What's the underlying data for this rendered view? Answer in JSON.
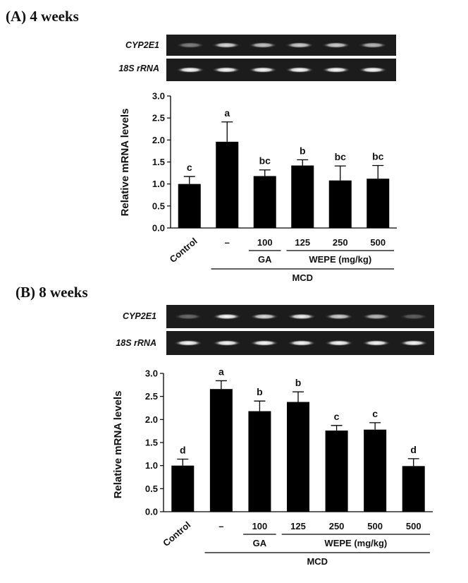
{
  "chart_data": [
    {
      "type": "bar",
      "panel_title": "(A) 4 weeks",
      "gel_labels": [
        "CYP2E1",
        "18S rRNA"
      ],
      "categories": [
        "Control",
        "–",
        "100",
        "125",
        "250",
        "500"
      ],
      "values": [
        1.0,
        1.96,
        1.18,
        1.42,
        1.08,
        1.12
      ],
      "errors": [
        0.17,
        0.45,
        0.14,
        0.13,
        0.33,
        0.3
      ],
      "significance": [
        "c",
        "a",
        "bc",
        "b",
        "bc",
        "bc"
      ],
      "ylabel": "Relative mRNA levels",
      "xlabel": "",
      "ylim": [
        0,
        3.0
      ],
      "yticks": [
        "0.0",
        "0.5",
        "1.0",
        "1.5",
        "2.0",
        "2.5",
        "3.0"
      ],
      "groups": [
        {
          "label": "GA",
          "from": 2,
          "to": 2
        },
        {
          "label": "WEPE (mg/kg)",
          "from": 3,
          "to": 5
        },
        {
          "label": "MCD",
          "from": 1,
          "to": 5
        }
      ],
      "bar_color": "#000000"
    },
    {
      "type": "bar",
      "panel_title": "(B) 8 weeks",
      "gel_labels": [
        "CYP2E1",
        "18S rRNA"
      ],
      "categories": [
        "Control",
        "–",
        "100",
        "125",
        "250",
        "500",
        "500"
      ],
      "values": [
        1.0,
        2.66,
        2.18,
        2.38,
        1.76,
        1.78,
        0.99
      ],
      "errors": [
        0.14,
        0.18,
        0.22,
        0.22,
        0.11,
        0.15,
        0.16
      ],
      "significance": [
        "d",
        "a",
        "b",
        "b",
        "c",
        "c",
        "d"
      ],
      "ylabel": "Relative mRNA levels",
      "xlabel": "",
      "ylim": [
        0,
        3.0
      ],
      "yticks": [
        "0.0",
        "0.5",
        "1.0",
        "1.5",
        "2.0",
        "2.5",
        "3.0"
      ],
      "groups": [
        {
          "label": "GA",
          "from": 2,
          "to": 2
        },
        {
          "label": "WEPE (mg/kg)",
          "from": 3,
          "to": 6
        },
        {
          "label": "MCD",
          "from": 1,
          "to": 6
        }
      ],
      "bar_color": "#000000"
    }
  ]
}
